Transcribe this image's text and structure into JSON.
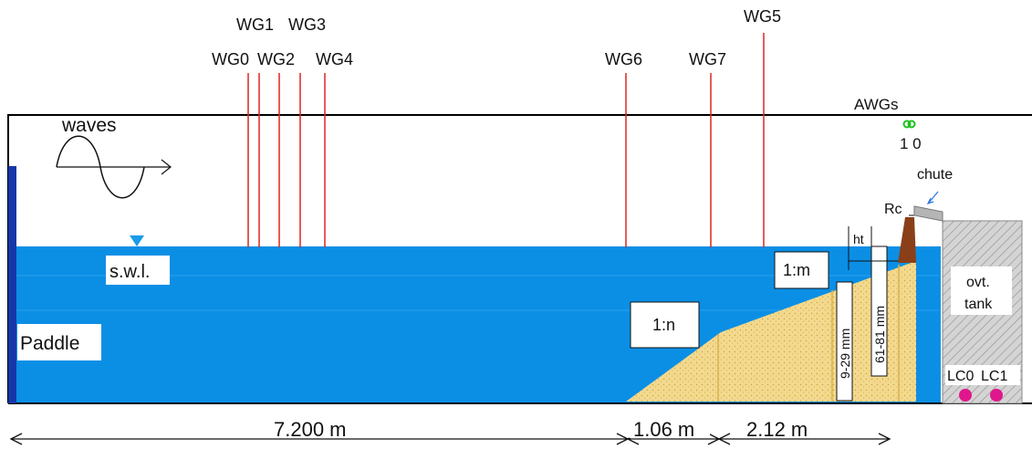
{
  "gauges": {
    "wg0": "WG0",
    "wg1": "WG1",
    "wg2": "WG2",
    "wg3": "WG3",
    "wg4": "WG4",
    "wg5": "WG5",
    "wg6": "WG6",
    "wg7": "WG7"
  },
  "labels": {
    "waves": "waves",
    "swl": "s.w.l.",
    "paddle": "Paddle",
    "slope_n": "1:n",
    "slope_m": "1:m",
    "awgs": "AWGs",
    "awg_ids": "1 0",
    "chute": "chute",
    "rc": "Rc",
    "ht": "ht",
    "dim_9_29": "9-29 mm",
    "dim_61_81": "61-81 mm",
    "tank_line1": "ovt.",
    "tank_line2": "tank",
    "lc0": "LC0",
    "lc1": "LC1"
  },
  "dimensions": {
    "d1": "7.200 m",
    "d2": "1.06 m",
    "d3": "2.12 m"
  },
  "colors": {
    "water": "#0b8fe5",
    "paddle": "#1637a8",
    "gauge_line": "#e02424",
    "sand": "#f3d98e",
    "crest_wall": "#8a3f18",
    "tank": "#cfcfcf",
    "awg": "#1fc11f",
    "load_cell": "#e0178c",
    "swl_marker": "#1a9be8"
  }
}
